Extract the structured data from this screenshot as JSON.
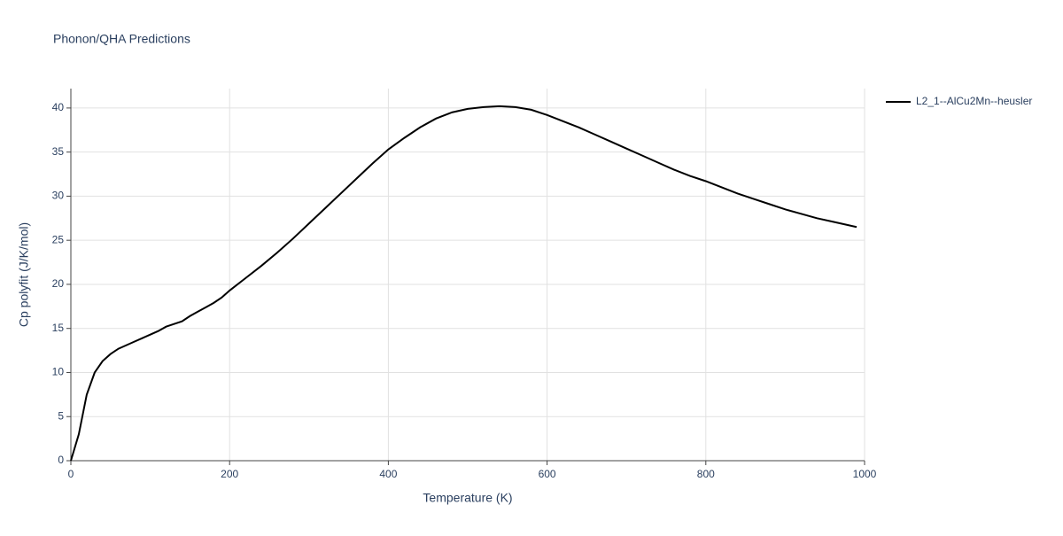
{
  "chart_data": {
    "type": "line",
    "title": "Phonon/QHA Predictions",
    "x_label": "Temperature (K)",
    "y_label": "Cp polyfit (J/K/mol)",
    "x": [
      0,
      10,
      20,
      30,
      40,
      50,
      60,
      70,
      80,
      90,
      100,
      110,
      120,
      130,
      140,
      150,
      160,
      170,
      180,
      190,
      200,
      220,
      240,
      260,
      280,
      300,
      320,
      340,
      360,
      380,
      400,
      420,
      440,
      460,
      480,
      500,
      520,
      540,
      560,
      580,
      600,
      620,
      640,
      660,
      680,
      700,
      720,
      740,
      760,
      780,
      800,
      820,
      840,
      860,
      880,
      900,
      920,
      940,
      960,
      980,
      990
    ],
    "series": [
      {
        "name": "L2_1--AlCu2Mn--heusler",
        "color": "#000000",
        "values": [
          0,
          3,
          7.5,
          10,
          11.3,
          12.1,
          12.7,
          13.1,
          13.5,
          13.9,
          14.3,
          14.7,
          15.2,
          15.5,
          15.8,
          16.4,
          16.9,
          17.4,
          17.9,
          18.5,
          19.3,
          20.7,
          22.1,
          23.6,
          25.2,
          26.9,
          28.6,
          30.3,
          32.0,
          33.7,
          35.3,
          36.6,
          37.8,
          38.8,
          39.5,
          39.9,
          40.1,
          40.2,
          40.1,
          39.8,
          39.2,
          38.5,
          37.8,
          37.0,
          36.2,
          35.4,
          34.6,
          33.8,
          33.0,
          32.3,
          31.7,
          31.0,
          30.3,
          29.7,
          29.1,
          28.5,
          28.0,
          27.5,
          27.1,
          26.7,
          26.5
        ]
      }
    ],
    "xlim": [
      0,
      1000
    ],
    "ylim": [
      0,
      42.2
    ],
    "xticks": [
      0,
      200,
      400,
      600,
      800,
      1000
    ],
    "yticks": [
      0,
      5,
      10,
      15,
      20,
      25,
      30,
      35,
      40
    ],
    "grid": true,
    "legend": "right"
  }
}
